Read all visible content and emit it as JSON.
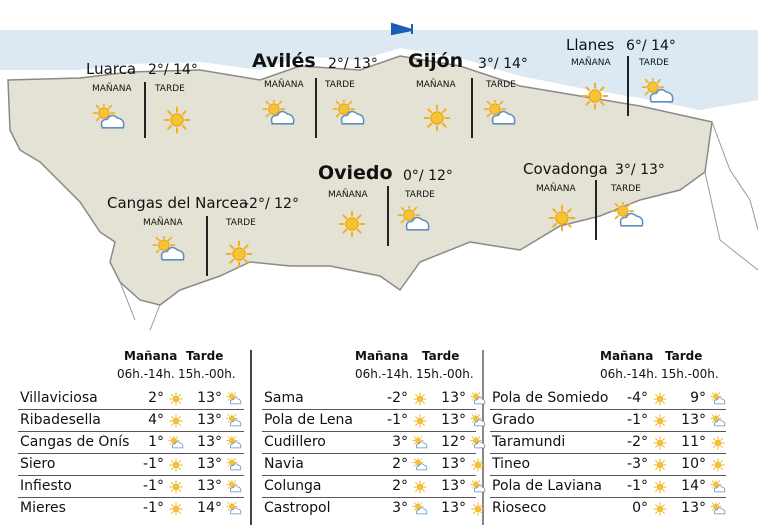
{
  "map": {
    "colors": {
      "land": "#e4e2d4",
      "sea": "#dce9f2",
      "border": "#8a8a8a",
      "sun": "#f2b01e",
      "cloud": "#5f8fbf"
    },
    "labels": {
      "morning": "MAÑANA",
      "afternoon": "TARDE"
    },
    "cities": [
      {
        "name": "Luarca",
        "temps": "2°/ 14°",
        "morning_icon": "sun-cloud-icon",
        "afternoon_icon": "sun-icon",
        "major": false
      },
      {
        "name": "Avilés",
        "temps": "2°/ 13°",
        "morning_icon": "sun-cloud-icon",
        "afternoon_icon": "sun-cloud-icon",
        "major": true
      },
      {
        "name": "Gijón",
        "temps": "3°/ 14°",
        "morning_icon": "sun-icon",
        "afternoon_icon": "sun-cloud-icon",
        "major": true
      },
      {
        "name": "Llanes",
        "temps": "6°/ 14°",
        "morning_icon": "sun-icon",
        "afternoon_icon": "sun-cloud-icon",
        "major": false
      },
      {
        "name": "Oviedo",
        "temps": "0°/ 12°",
        "morning_icon": "sun-icon",
        "afternoon_icon": "sun-cloud-icon",
        "major": true
      },
      {
        "name": "Covadonga",
        "temps": "3°/ 13°",
        "morning_icon": "sun-icon",
        "afternoon_icon": "sun-cloud-icon",
        "major": false
      },
      {
        "name": "Cangas del Narcea",
        "temps": "-2°/ 12°",
        "morning_icon": "sun-cloud-icon",
        "afternoon_icon": "sun-icon",
        "major": false
      }
    ]
  },
  "table": {
    "header": {
      "morning": "Mañana",
      "afternoon": "Tarde",
      "morning_hours": "06h.-14h.",
      "afternoon_hours": "15h.-00h."
    },
    "columns": [
      [
        {
          "name": "Villaviciosa",
          "m": "2°",
          "mi": "sun",
          "a": "13°",
          "ai": "sun-cloud"
        },
        {
          "name": "Ribadesella",
          "m": "4°",
          "mi": "sun",
          "a": "13°",
          "ai": "sun-cloud"
        },
        {
          "name": "Cangas de Onís",
          "m": "1°",
          "mi": "sun-cloud",
          "a": "13°",
          "ai": "sun-cloud"
        },
        {
          "name": "Siero",
          "m": "-1°",
          "mi": "sun",
          "a": "13°",
          "ai": "sun-cloud"
        },
        {
          "name": "Infiesto",
          "m": "-1°",
          "mi": "sun",
          "a": "13°",
          "ai": "sun-cloud"
        },
        {
          "name": "Mieres",
          "m": "-1°",
          "mi": "sun",
          "a": "14°",
          "ai": "sun-cloud"
        }
      ],
      [
        {
          "name": "Sama",
          "m": "-2°",
          "mi": "sun",
          "a": "13°",
          "ai": "sun-cloud"
        },
        {
          "name": "Pola de Lena",
          "m": "-1°",
          "mi": "sun",
          "a": "13°",
          "ai": "sun-cloud"
        },
        {
          "name": "Cudillero",
          "m": "3°",
          "mi": "sun-cloud",
          "a": "12°",
          "ai": "sun-cloud"
        },
        {
          "name": "Navia",
          "m": "2°",
          "mi": "sun-cloud",
          "a": "13°",
          "ai": "sun"
        },
        {
          "name": "Colunga",
          "m": "2°",
          "mi": "sun",
          "a": "13°",
          "ai": "sun-cloud"
        },
        {
          "name": "Castropol",
          "m": "3°",
          "mi": "sun-cloud",
          "a": "13°",
          "ai": "sun"
        }
      ],
      [
        {
          "name": "Pola de Somiedo",
          "m": "-4°",
          "mi": "sun",
          "a": "9°",
          "ai": "sun-cloud"
        },
        {
          "name": "Grado",
          "m": "-1°",
          "mi": "sun",
          "a": "13°",
          "ai": "sun-cloud"
        },
        {
          "name": "Taramundi",
          "m": "-2°",
          "mi": "sun",
          "a": "11°",
          "ai": "sun"
        },
        {
          "name": "Tineo",
          "m": "-3°",
          "mi": "sun",
          "a": "10°",
          "ai": "sun"
        },
        {
          "name": "Pola de Laviana",
          "m": "-1°",
          "mi": "sun",
          "a": "14°",
          "ai": "sun-cloud"
        },
        {
          "name": "Rioseco",
          "m": "0°",
          "mi": "sun",
          "a": "13°",
          "ai": "sun-cloud"
        }
      ]
    ]
  }
}
